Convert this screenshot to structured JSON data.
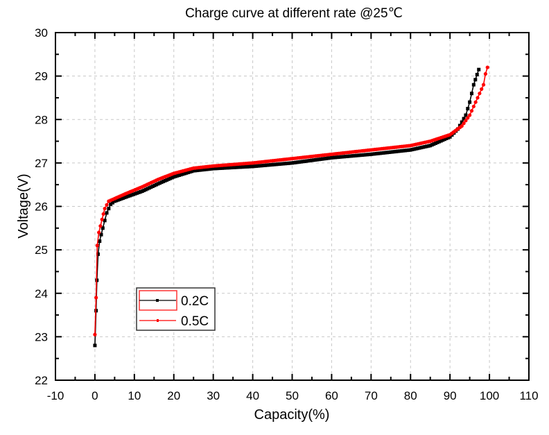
{
  "chart_data": {
    "type": "line",
    "title": "Charge curve at different rate @25℃",
    "xlabel": "Capacity(%)",
    "ylabel": "Voltage(V)",
    "xlim": [
      -10,
      110
    ],
    "ylim": [
      22,
      30
    ],
    "xticks": [
      -10,
      0,
      10,
      20,
      30,
      40,
      50,
      60,
      70,
      80,
      90,
      100,
      110
    ],
    "xtick_labels": [
      "-10",
      "0",
      "10",
      "20",
      "30",
      "40",
      "50",
      "60",
      "70",
      "80",
      "90",
      "100",
      "110"
    ],
    "yticks": [
      22,
      23,
      24,
      25,
      26,
      27,
      28,
      29,
      30
    ],
    "ytick_labels": [
      "22",
      "23",
      "24",
      "25",
      "26",
      "27",
      "28",
      "29",
      "30"
    ],
    "grid": true,
    "legend_position": "lower-left",
    "series": [
      {
        "name": "0.2C",
        "color": "#000000",
        "marker": "square",
        "x": [
          0,
          0.3,
          0.5,
          0.8,
          1.2,
          2,
          3,
          4,
          5,
          8,
          12,
          16,
          20,
          25,
          30,
          40,
          50,
          60,
          70,
          80,
          85,
          90,
          92,
          94,
          95,
          96,
          97.3
        ],
        "y": [
          22.8,
          23.6,
          24.3,
          24.9,
          25.2,
          25.5,
          25.85,
          26.05,
          26.12,
          26.22,
          26.35,
          26.52,
          26.68,
          26.82,
          26.87,
          26.92,
          27.0,
          27.12,
          27.2,
          27.3,
          27.4,
          27.6,
          27.78,
          28.1,
          28.4,
          28.8,
          29.15
        ]
      },
      {
        "name": "0.5C",
        "color": "#ff0000",
        "marker": "circle",
        "x": [
          0,
          0.3,
          0.6,
          1,
          1.8,
          2.5,
          3.5,
          5,
          8,
          12,
          16,
          20,
          25,
          30,
          40,
          50,
          60,
          70,
          80,
          85,
          90,
          93,
          95,
          97,
          98.5,
          99,
          99.5
        ],
        "y": [
          23.05,
          23.9,
          25.1,
          25.4,
          25.7,
          25.95,
          26.12,
          26.18,
          26.3,
          26.45,
          26.62,
          26.76,
          26.88,
          26.93,
          27.0,
          27.1,
          27.2,
          27.3,
          27.4,
          27.5,
          27.65,
          27.85,
          28.1,
          28.5,
          28.8,
          29.05,
          29.2
        ]
      }
    ]
  }
}
